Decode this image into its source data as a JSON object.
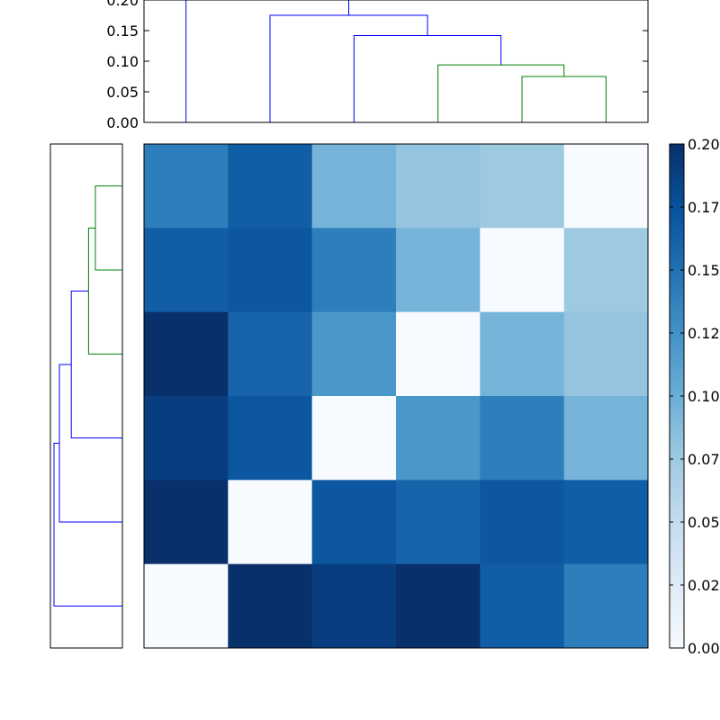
{
  "chart_data": [
    {
      "type": "dendrogram",
      "orientation": "top",
      "ylim": [
        0,
        0.2
      ],
      "yticks": [
        "0.00",
        "0.05",
        "0.10",
        "0.15",
        "0.20"
      ],
      "merges": [
        {
          "left": 4,
          "right": 5,
          "height": 0.075,
          "color": "#008000"
        },
        {
          "left": 3,
          "right": "m0",
          "height": 0.094,
          "color": "#008000"
        },
        {
          "left": 2,
          "right": "m1",
          "height": 0.142,
          "color": "#0000ff"
        },
        {
          "left": 1,
          "right": "m2",
          "height": 0.175,
          "color": "#0000ff"
        },
        {
          "left": 0,
          "right": "m3",
          "height": 0.2,
          "color": "#0000ff"
        }
      ]
    },
    {
      "type": "dendrogram",
      "orientation": "left",
      "xlim": [
        0,
        0.2
      ],
      "merges": [
        {
          "left": 0,
          "right": 1,
          "height": 0.075,
          "color": "#008000"
        },
        {
          "left": 2,
          "right": "m0",
          "height": 0.094,
          "color": "#008000"
        },
        {
          "left": 3,
          "right": "m1",
          "height": 0.142,
          "color": "#0000ff"
        },
        {
          "left": 4,
          "right": "m2",
          "height": 0.175,
          "color": "#0000ff"
        },
        {
          "left": 5,
          "right": "m3",
          "height": 0.2,
          "color": "#0000ff"
        }
      ]
    },
    {
      "type": "heatmap",
      "colormap": "Blues",
      "vmin": 0,
      "vmax": 0.2,
      "matrix": [
        [
          0.14,
          0.165,
          0.095,
          0.08,
          0.075,
          0.0
        ],
        [
          0.165,
          0.17,
          0.14,
          0.095,
          0.0,
          0.075
        ],
        [
          0.2,
          0.16,
          0.12,
          0.0,
          0.095,
          0.08
        ],
        [
          0.19,
          0.17,
          0.0,
          0.12,
          0.14,
          0.095
        ],
        [
          0.2,
          0.0,
          0.17,
          0.16,
          0.17,
          0.165
        ],
        [
          0.0,
          0.2,
          0.19,
          0.2,
          0.165,
          0.14
        ]
      ],
      "colorbar_ticks": [
        "0.000",
        "0.025",
        "0.050",
        "0.075",
        "0.100",
        "0.125",
        "0.150",
        "0.175",
        "0.200"
      ],
      "colorbar_tick_values": [
        0,
        0.025,
        0.05,
        0.075,
        0.1,
        0.125,
        0.15,
        0.175,
        0.2
      ]
    }
  ]
}
